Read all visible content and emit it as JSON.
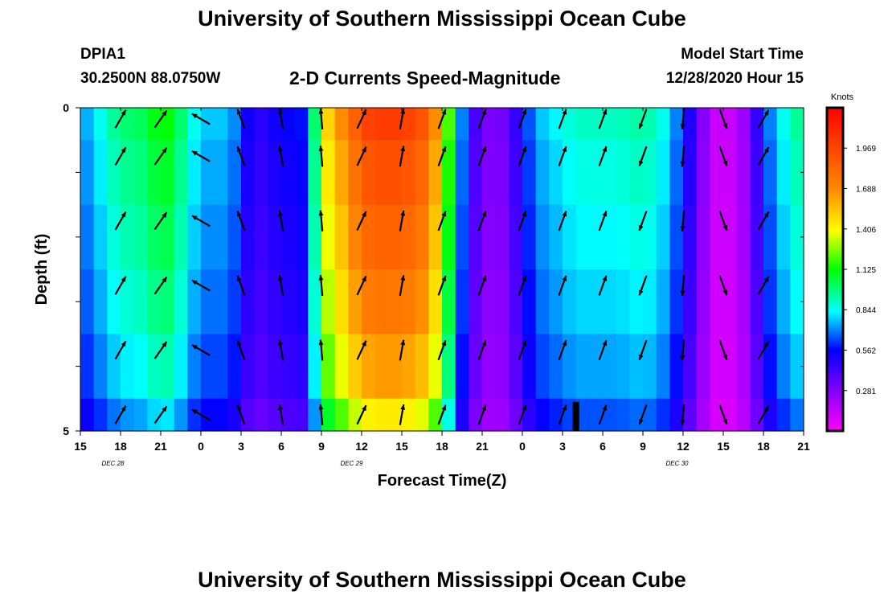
{
  "header": {
    "title": "University of Southern Mississippi Ocean Cube",
    "station": "DPIA1",
    "coords": "30.2500N 88.0750W",
    "subtitle": "2-D Currents Speed-Magnitude",
    "model_label": "Model Start Time",
    "model_time": "12/28/2020 Hour 15"
  },
  "footer": {
    "title": "University of Southern Mississippi Ocean Cube"
  },
  "chart_data": {
    "type": "heatmap",
    "title": "2-D Currents Speed-Magnitude",
    "xlabel": "Forecast Time(Z)",
    "ylabel": "Depth (ft)",
    "x_ticks": [
      "15",
      "18",
      "21",
      "0",
      "3",
      "6",
      "9",
      "12",
      "15",
      "18",
      "21",
      "0",
      "3",
      "6",
      "9",
      "12",
      "15",
      "18",
      "21"
    ],
    "date_labels": [
      {
        "text": "DEC 28",
        "hour": 4.5
      },
      {
        "text": "DEC 29",
        "hour": 37.5
      },
      {
        "text": "DEC 30",
        "hour": 82.5
      }
    ],
    "x_range_hours": [
      0,
      54
    ],
    "y_ticks": [
      "0",
      "5"
    ],
    "y_range_ft": [
      0,
      5
    ],
    "depth_bins_ft": [
      0,
      0.5,
      1.5,
      2.5,
      3.5,
      4.5,
      5
    ],
    "colorbar": {
      "label": "Knots",
      "min": 0,
      "max": 2.25,
      "ticks": [
        "1.969",
        "1.688",
        "1.406",
        "1.125",
        "0.844",
        "0.562",
        "0.281"
      ],
      "tick_values": [
        1.969,
        1.688,
        1.406,
        1.125,
        0.844,
        0.562,
        0.281
      ]
    },
    "speed_profile_hours": [
      0,
      1,
      2,
      3,
      4,
      5,
      6,
      7,
      8,
      9,
      10,
      11,
      12,
      13,
      14,
      15,
      16,
      17,
      18,
      19,
      20,
      21,
      22,
      23,
      24,
      25,
      26,
      27,
      28,
      29,
      30,
      31,
      32,
      33,
      34,
      35,
      36,
      37,
      38,
      39,
      40,
      41,
      42,
      43,
      44,
      45,
      46,
      47,
      48,
      49,
      50,
      51,
      52,
      53,
      54
    ],
    "speed_profile_knots": [
      0.7,
      0.8,
      0.9,
      1.0,
      1.0,
      1.05,
      1.15,
      1.1,
      0.9,
      0.8,
      0.75,
      0.8,
      0.62,
      0.45,
      0.5,
      0.55,
      0.55,
      0.6,
      1.4,
      1.6,
      1.75,
      1.95,
      2.0,
      2.0,
      2.0,
      1.95,
      1.85,
      1.5,
      0.9,
      0.5,
      0.32,
      0.28,
      0.35,
      0.55,
      0.75,
      0.8,
      0.85,
      0.9,
      0.9,
      0.9,
      0.9,
      0.92,
      0.95,
      0.9,
      0.8,
      0.6,
      0.4,
      0.15,
      0.1,
      0.15,
      0.3,
      0.6,
      0.8,
      0.9,
      1.0
    ],
    "depth_speed_factor": [
      1.0,
      0.96,
      0.92,
      0.88,
      0.82,
      0.72
    ],
    "arrow_hours": [
      3,
      6,
      9,
      12,
      15,
      18,
      21,
      24,
      27,
      30,
      33,
      36,
      39,
      42,
      45,
      48,
      51
    ],
    "arrow_direction_deg": [
      30,
      35,
      300,
      340,
      350,
      355,
      25,
      10,
      20,
      20,
      20,
      20,
      20,
      200,
      185,
      160,
      30
    ],
    "arrow_depth_rows_ft": [
      0.0,
      0.75,
      1.75,
      2.75,
      3.75,
      4.75
    ],
    "marker_hour": 37
  }
}
